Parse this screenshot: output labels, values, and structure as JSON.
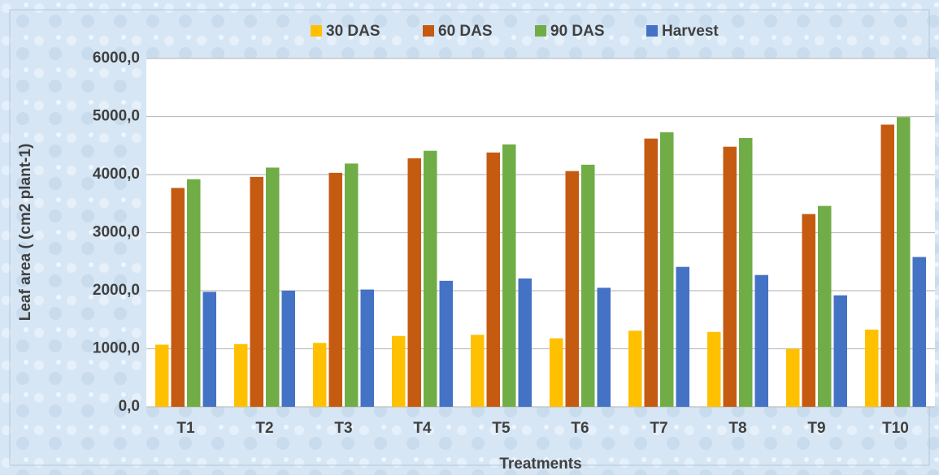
{
  "chart_data": {
    "type": "bar",
    "y_label": "Leaf area ( (cm2 plant-1)",
    "x_label": "Treatments",
    "categories": [
      "T1",
      "T2",
      "T3",
      "T4",
      "T5",
      "T6",
      "T7",
      "T8",
      "T9",
      "T10"
    ],
    "series": [
      {
        "name": "30 DAS",
        "color": "#ffc000",
        "values": [
          1070,
          1080,
          1100,
          1220,
          1240,
          1180,
          1310,
          1290,
          1000,
          1330
        ]
      },
      {
        "name": "60 DAS",
        "color": "#c55a11",
        "values": [
          3770,
          3960,
          4030,
          4280,
          4380,
          4060,
          4620,
          4480,
          3320,
          4860
        ]
      },
      {
        "name": "90 DAS",
        "color": "#70ad47",
        "values": [
          3920,
          4120,
          4190,
          4410,
          4520,
          4170,
          4730,
          4630,
          3460,
          4990
        ]
      },
      {
        "name": "Harvest",
        "color": "#4472c4",
        "values": [
          1980,
          2000,
          2020,
          2170,
          2210,
          2050,
          2410,
          2270,
          1920,
          2580
        ]
      }
    ],
    "ylim": [
      0,
      6000
    ],
    "yticks": [
      {
        "value": 0,
        "label": "0,0"
      },
      {
        "value": 1000,
        "label": "1000,0"
      },
      {
        "value": 2000,
        "label": "2000,0"
      },
      {
        "value": 3000,
        "label": "3000,0"
      },
      {
        "value": 4000,
        "label": "4000,0"
      },
      {
        "value": 5000,
        "label": "5000,0"
      },
      {
        "value": 6000,
        "label": "6000,0"
      }
    ],
    "grid": true,
    "legend": "top"
  }
}
